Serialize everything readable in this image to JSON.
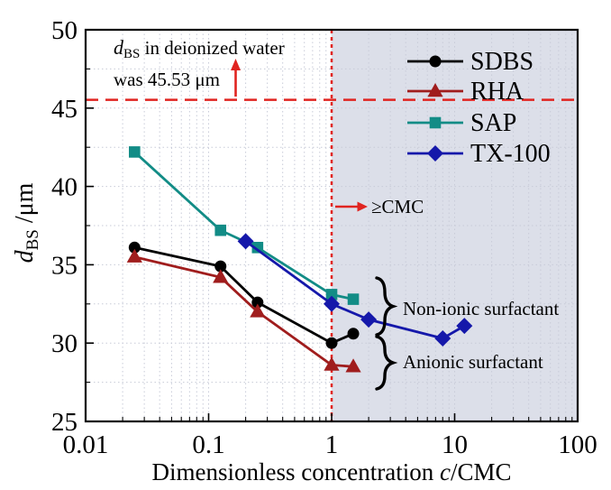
{
  "chart_data": {
    "type": "line",
    "x_scale": "log",
    "xlim": [
      0.01,
      100
    ],
    "ylim": [
      25,
      50
    ],
    "x_ticks": [
      0.01,
      0.1,
      1,
      10,
      100
    ],
    "x_tick_labels": [
      "0.01",
      "0.1",
      "1",
      "10",
      "100"
    ],
    "y_ticks": [
      25,
      30,
      35,
      40,
      45,
      50
    ],
    "y_tick_labels": [
      "25",
      "30",
      "35",
      "40",
      "45",
      "50"
    ],
    "y_minor_ticks": [
      27.5,
      32.5,
      37.5,
      42.5,
      47.5
    ],
    "grid": true,
    "xlabel": {
      "prefix": "Dimensionless concentration ",
      "italic_var": "c",
      "suffix": "/CMC"
    },
    "ylabel": {
      "italic_var": "d",
      "subscript": "BS",
      "suffix": " /μm"
    },
    "legend_position": "top-right-inside",
    "series": [
      {
        "name": "SDBS",
        "color": "#000000",
        "marker": "circle",
        "x": [
          0.025,
          0.125,
          0.25,
          1.0,
          1.5
        ],
        "y": [
          36.1,
          34.9,
          32.6,
          30.0,
          30.6
        ]
      },
      {
        "name": "RHA",
        "color": "#A01D1D",
        "marker": "triangle",
        "x": [
          0.025,
          0.125,
          0.25,
          1.0,
          1.5
        ],
        "y": [
          35.5,
          34.2,
          32.0,
          28.6,
          28.5
        ]
      },
      {
        "name": "SAP",
        "color": "#128C86",
        "marker": "square",
        "x": [
          0.025,
          0.125,
          0.25,
          1.0,
          1.5
        ],
        "y": [
          42.2,
          37.2,
          36.1,
          33.1,
          32.8
        ]
      },
      {
        "name": "TX-100",
        "color": "#1518AA",
        "marker": "diamond",
        "x": [
          0.2,
          1.0,
          2.0,
          8.0,
          12.0
        ],
        "y": [
          36.5,
          32.5,
          31.5,
          30.3,
          31.1
        ]
      }
    ],
    "reference_lines": [
      {
        "axis": "y",
        "value": 45.53,
        "style": "long-dash",
        "color": "#E02420"
      },
      {
        "axis": "x",
        "value": 1.0,
        "style": "short-dash",
        "color": "#E02420"
      }
    ],
    "shaded_region": {
      "x_from": 1.0,
      "x_to": 100.0,
      "color": "#DCDFE9"
    },
    "annotations": {
      "deionized_water": {
        "italic_var": "d",
        "subscript": "BS",
        "line1_rest": " in deionized water",
        "line2": "was 45.53 μm"
      },
      "cmc_threshold": "≥CMC",
      "non_ionic_group": "Non-ionic surfactant",
      "anionic_group": "Anionic surfactant"
    }
  },
  "style_colors": {
    "background": "#FFFFFF",
    "frame": "#000000",
    "grid": "#C8CBD8",
    "shade": "#DCDFE9",
    "reference_red": "#E02420",
    "text": "#000000"
  }
}
